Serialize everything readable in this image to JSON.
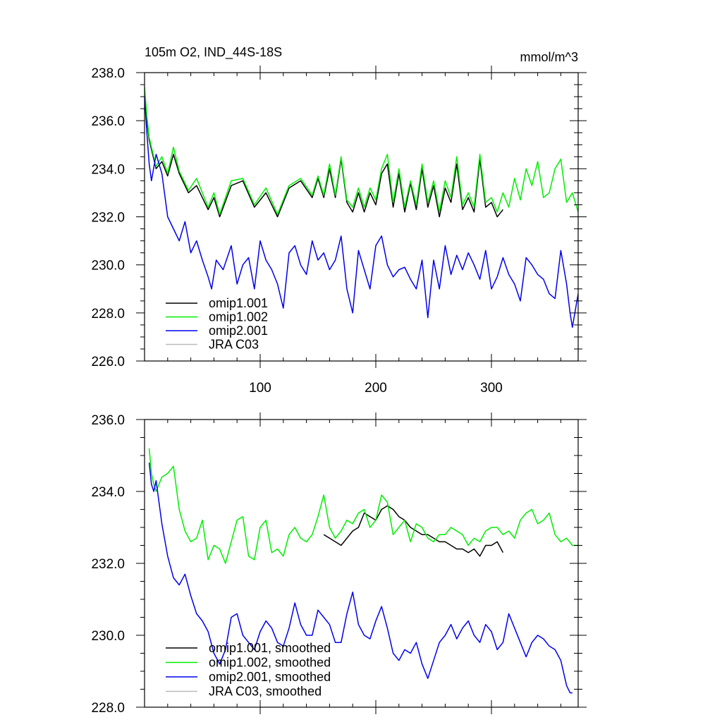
{
  "chart_data": [
    {
      "id": "monthly",
      "type": "line",
      "title": "105m O2, IND_44S-18S",
      "units": "mmol/m^3",
      "xlabel": "",
      "ylabel": "",
      "xlim": [
        0,
        375
      ],
      "ylim": [
        226,
        238
      ],
      "xticks": [
        100,
        200,
        300
      ],
      "xtick_labels": [
        "100",
        "200",
        "300"
      ],
      "yticks": [
        226,
        228,
        230,
        232,
        234,
        236,
        238
      ],
      "ytick_labels": [
        "226.0",
        "228.0",
        "230.0",
        "232.0",
        "234.0",
        "236.0",
        "238.0"
      ],
      "legend_position": "bottom-left",
      "series": [
        {
          "name": "omip1.001",
          "color": "#000000",
          "x": [
            0,
            2,
            4,
            6,
            10,
            15,
            20,
            25,
            30,
            38,
            45,
            55,
            60,
            65,
            75,
            85,
            95,
            105,
            115,
            125,
            135,
            145,
            150,
            155,
            160,
            165,
            170,
            175,
            180,
            185,
            190,
            195,
            200,
            205,
            210,
            215,
            220,
            225,
            230,
            235,
            240,
            245,
            250,
            255,
            260,
            265,
            270,
            275,
            280,
            285,
            290,
            295,
            300,
            305,
            310
          ],
          "values": [
            237.2,
            236.0,
            235.2,
            234.8,
            234.0,
            234.3,
            233.7,
            234.6,
            233.8,
            233.0,
            233.3,
            232.3,
            232.8,
            232.0,
            233.3,
            233.5,
            232.4,
            233.0,
            232.0,
            233.2,
            233.5,
            232.8,
            233.6,
            232.8,
            234.0,
            232.8,
            234.4,
            232.6,
            232.2,
            233.0,
            232.2,
            233.0,
            232.5,
            233.8,
            234.2,
            232.4,
            233.8,
            232.2,
            233.4,
            232.3,
            234.0,
            232.4,
            233.3,
            232.0,
            233.2,
            232.6,
            234.2,
            232.3,
            232.8,
            232.2,
            234.4,
            232.4,
            232.6,
            232.0,
            232.3
          ]
        },
        {
          "name": "omip1.002",
          "color": "#00ee00",
          "x": [
            0,
            2,
            4,
            6,
            10,
            15,
            20,
            25,
            30,
            38,
            45,
            55,
            60,
            65,
            75,
            85,
            95,
            105,
            115,
            125,
            135,
            145,
            150,
            155,
            160,
            165,
            170,
            175,
            180,
            185,
            190,
            195,
            200,
            205,
            210,
            215,
            220,
            225,
            230,
            235,
            240,
            245,
            250,
            255,
            260,
            265,
            270,
            275,
            280,
            285,
            290,
            295,
            300,
            305,
            310,
            315,
            320,
            325,
            330,
            335,
            340,
            345,
            350,
            355,
            360,
            365,
            370,
            375
          ],
          "values": [
            237.4,
            236.2,
            235.3,
            234.9,
            234.1,
            234.5,
            233.8,
            234.9,
            233.9,
            233.1,
            233.6,
            232.4,
            233.0,
            232.1,
            233.5,
            233.6,
            232.5,
            233.2,
            232.1,
            233.3,
            233.6,
            232.9,
            233.7,
            232.9,
            234.2,
            232.9,
            234.5,
            232.7,
            232.4,
            233.2,
            232.4,
            233.2,
            232.7,
            234.0,
            234.6,
            232.6,
            234.0,
            232.4,
            233.5,
            232.5,
            234.2,
            232.6,
            233.5,
            232.2,
            233.5,
            232.8,
            234.5,
            232.5,
            233.0,
            232.4,
            234.6,
            232.6,
            232.8,
            232.2,
            233.0,
            232.4,
            233.6,
            232.7,
            234.0,
            233.3,
            234.3,
            232.8,
            233.0,
            234.0,
            234.4,
            232.6,
            233.0,
            232.2
          ]
        },
        {
          "name": "omip2.001",
          "color": "#0000ee",
          "x": [
            0,
            2,
            4,
            6,
            10,
            15,
            20,
            25,
            30,
            35,
            40,
            45,
            50,
            55,
            58,
            62,
            68,
            75,
            80,
            85,
            90,
            95,
            100,
            105,
            110,
            115,
            120,
            125,
            130,
            135,
            140,
            145,
            150,
            155,
            160,
            165,
            170,
            175,
            180,
            185,
            190,
            195,
            200,
            205,
            210,
            215,
            220,
            225,
            230,
            235,
            240,
            245,
            250,
            255,
            260,
            265,
            270,
            275,
            280,
            285,
            290,
            295,
            300,
            305,
            310,
            315,
            320,
            325,
            330,
            335,
            340,
            345,
            350,
            355,
            360,
            365,
            368,
            370,
            375
          ],
          "values": [
            237.0,
            235.5,
            234.2,
            233.5,
            234.6,
            233.8,
            232.0,
            231.5,
            231.0,
            231.8,
            230.5,
            231.0,
            230.2,
            229.5,
            229.0,
            230.2,
            229.8,
            230.8,
            229.2,
            230.0,
            230.3,
            229.0,
            231.0,
            230.2,
            229.8,
            229.2,
            228.2,
            230.5,
            230.8,
            230.0,
            229.6,
            231.0,
            230.2,
            230.5,
            229.8,
            230.2,
            231.2,
            229.0,
            228.0,
            230.6,
            229.8,
            229.0,
            230.8,
            231.2,
            230.0,
            229.5,
            229.8,
            229.9,
            229.4,
            229.0,
            230.2,
            227.8,
            230.2,
            229.0,
            230.8,
            229.6,
            230.4,
            229.8,
            230.5,
            230.0,
            229.4,
            230.6,
            229.0,
            229.5,
            230.3,
            229.6,
            229.2,
            228.5,
            230.3,
            230.0,
            229.6,
            229.4,
            228.8,
            228.6,
            230.6,
            229.2,
            228.0,
            227.4,
            228.8
          ]
        },
        {
          "name": "JRA C03",
          "color": "#bbbbbb",
          "x": [],
          "values": []
        }
      ]
    },
    {
      "id": "smoothed",
      "type": "line",
      "title": "",
      "xlabel": "",
      "ylabel": "",
      "xlim": [
        0,
        375
      ],
      "ylim": [
        228,
        236
      ],
      "xticks": [
        100,
        200,
        300
      ],
      "xtick_labels": [],
      "yticks": [
        228,
        230,
        232,
        234,
        236
      ],
      "ytick_labels": [
        "228.0",
        "230.0",
        "232.0",
        "234.0",
        "236.0"
      ],
      "legend_position": "bottom-left",
      "series": [
        {
          "name": "omip1.001, smoothed",
          "color": "#000000",
          "x": [
            155,
            160,
            165,
            170,
            175,
            180,
            185,
            190,
            195,
            200,
            205,
            210,
            215,
            220,
            225,
            230,
            235,
            240,
            245,
            250,
            255,
            260,
            265,
            270,
            275,
            280,
            285,
            290,
            295,
            300,
            305,
            310
          ],
          "values": [
            232.8,
            232.7,
            232.6,
            232.5,
            232.7,
            232.9,
            233.0,
            233.4,
            233.3,
            233.2,
            233.5,
            233.6,
            233.5,
            233.3,
            233.2,
            233.0,
            232.9,
            232.8,
            232.8,
            232.7,
            232.6,
            232.6,
            232.5,
            232.4,
            232.4,
            232.3,
            232.4,
            232.2,
            232.5,
            232.5,
            232.6,
            232.3
          ]
        },
        {
          "name": "omip1.002, smoothed",
          "color": "#00ee00",
          "x": [
            4,
            6,
            8,
            10,
            15,
            20,
            25,
            30,
            35,
            40,
            45,
            50,
            55,
            60,
            65,
            70,
            75,
            80,
            85,
            90,
            95,
            100,
            105,
            110,
            115,
            120,
            125,
            130,
            135,
            140,
            145,
            150,
            155,
            160,
            165,
            170,
            175,
            180,
            185,
            190,
            195,
            200,
            205,
            210,
            215,
            220,
            225,
            230,
            235,
            240,
            245,
            250,
            255,
            260,
            265,
            270,
            275,
            280,
            285,
            290,
            295,
            300,
            305,
            310,
            315,
            320,
            325,
            330,
            335,
            340,
            345,
            350,
            355,
            360,
            365,
            370,
            375
          ],
          "values": [
            235.2,
            234.5,
            234.2,
            234.0,
            234.4,
            234.5,
            234.7,
            233.5,
            232.9,
            232.6,
            232.7,
            233.2,
            232.1,
            232.5,
            232.4,
            232.0,
            232.6,
            233.2,
            233.3,
            232.2,
            232.1,
            233.0,
            233.2,
            232.3,
            232.4,
            232.2,
            232.8,
            233.0,
            232.7,
            232.6,
            232.8,
            233.3,
            233.9,
            233.0,
            232.7,
            232.9,
            233.2,
            233.1,
            233.4,
            233.5,
            233.0,
            233.2,
            233.9,
            233.7,
            232.8,
            233.0,
            233.2,
            232.6,
            233.1,
            233.0,
            232.7,
            232.6,
            232.8,
            232.8,
            233.0,
            232.9,
            232.8,
            232.5,
            232.7,
            232.6,
            232.9,
            233.0,
            233.0,
            232.8,
            232.9,
            232.7,
            233.2,
            233.4,
            233.5,
            233.1,
            233.2,
            233.4,
            232.8,
            232.6,
            232.7,
            232.5,
            232.5
          ]
        },
        {
          "name": "omip2.001, smoothed",
          "color": "#0000ee",
          "x": [
            4,
            6,
            8,
            10,
            15,
            20,
            25,
            30,
            35,
            40,
            45,
            50,
            55,
            60,
            65,
            70,
            75,
            80,
            85,
            90,
            95,
            100,
            105,
            110,
            115,
            120,
            125,
            130,
            135,
            140,
            145,
            150,
            155,
            160,
            165,
            170,
            175,
            180,
            185,
            190,
            195,
            200,
            205,
            210,
            215,
            220,
            225,
            230,
            235,
            240,
            245,
            250,
            255,
            260,
            265,
            270,
            275,
            280,
            285,
            290,
            295,
            300,
            305,
            310,
            315,
            320,
            325,
            330,
            335,
            340,
            345,
            350,
            355,
            360,
            365,
            368,
            370
          ],
          "values": [
            234.8,
            234.2,
            234.0,
            234.3,
            233.1,
            232.2,
            231.6,
            231.4,
            231.7,
            231.1,
            230.6,
            230.4,
            230.1,
            229.5,
            229.2,
            229.6,
            230.5,
            230.6,
            230.0,
            229.8,
            229.6,
            230.1,
            230.4,
            230.2,
            229.8,
            229.7,
            230.2,
            230.9,
            230.3,
            230.0,
            230.0,
            230.7,
            230.5,
            230.3,
            229.8,
            229.8,
            230.6,
            231.2,
            230.3,
            230.0,
            229.9,
            230.4,
            230.8,
            230.2,
            229.5,
            229.3,
            229.6,
            229.5,
            229.8,
            229.2,
            228.8,
            229.3,
            229.8,
            230.0,
            230.3,
            229.9,
            230.2,
            230.4,
            230.0,
            229.8,
            230.3,
            230.1,
            229.6,
            229.8,
            230.6,
            230.2,
            229.8,
            229.4,
            229.8,
            230.0,
            229.9,
            229.7,
            229.6,
            229.3,
            228.6,
            228.4,
            228.4
          ]
        },
        {
          "name": "JRA C03, smoothed",
          "color": "#bbbbbb",
          "x": [],
          "values": []
        }
      ]
    }
  ]
}
